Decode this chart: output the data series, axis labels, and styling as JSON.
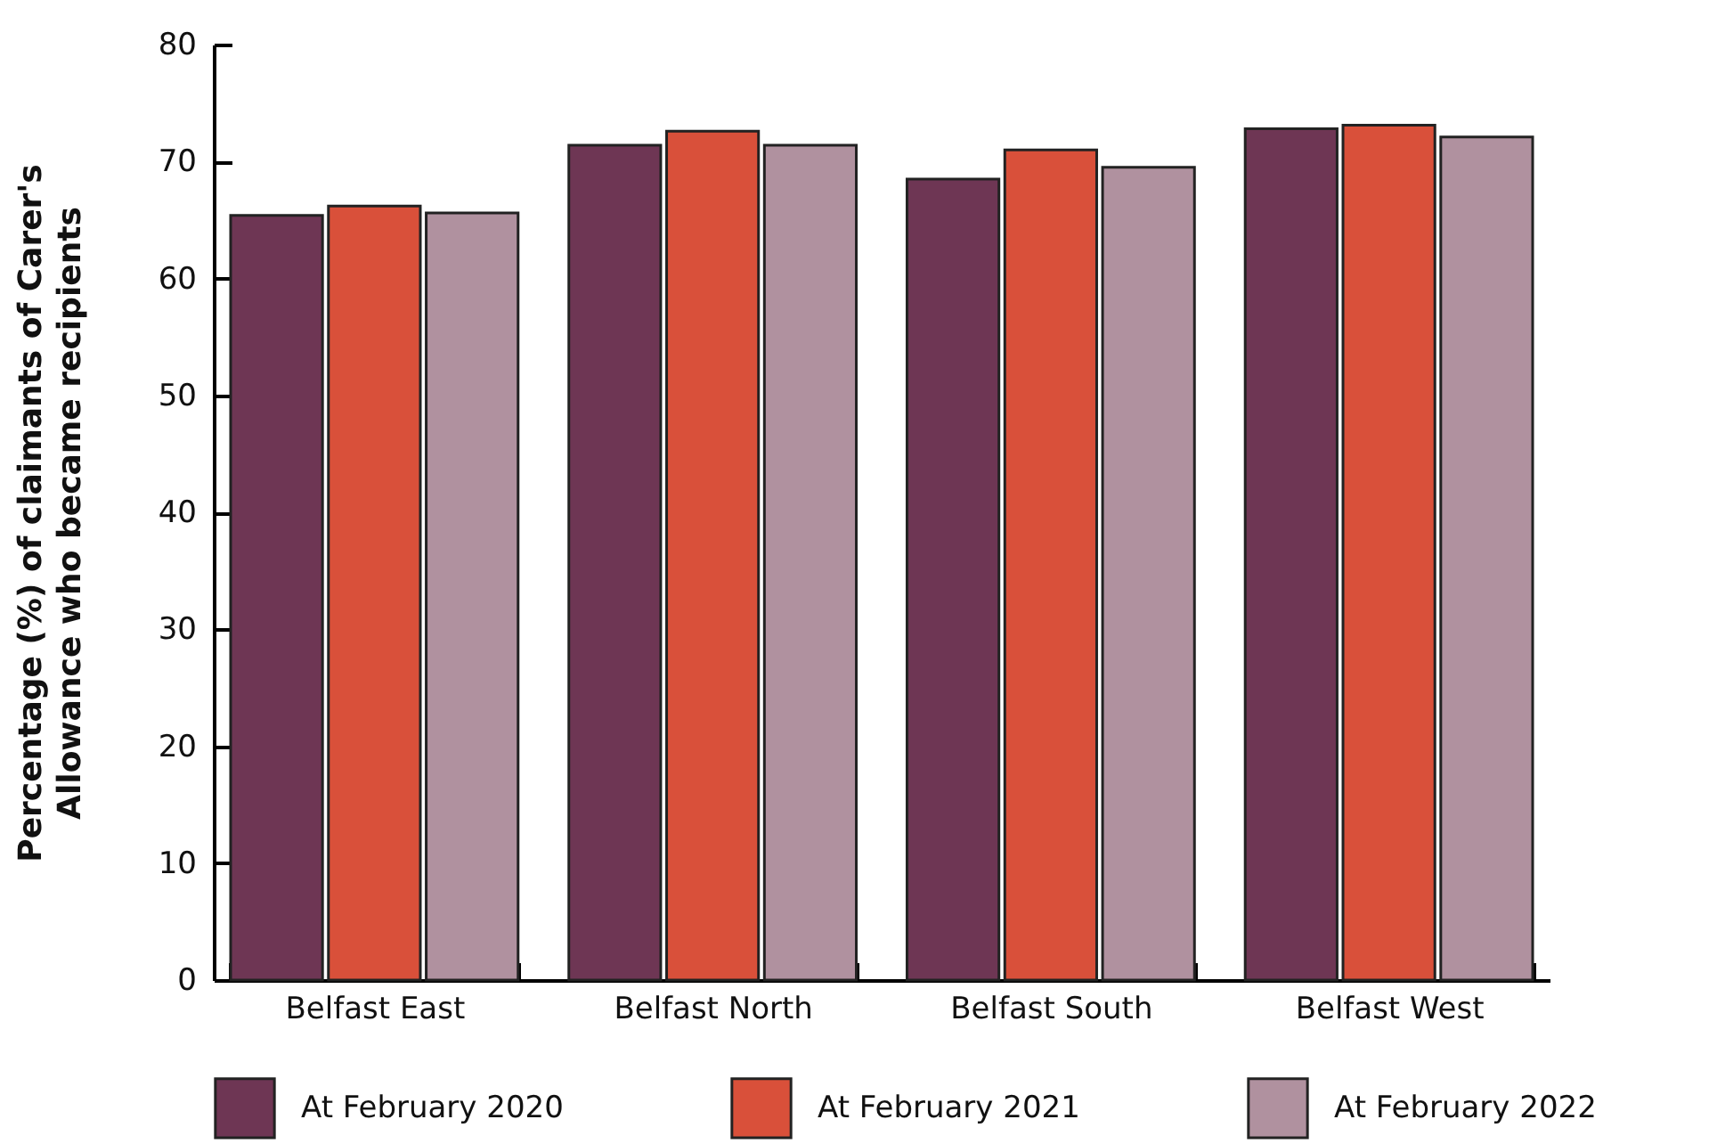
{
  "chart_data": {
    "type": "bar",
    "ylabel": "Percentage (%) of claimants of Carer's Allowance who became recipients",
    "categories": [
      "Belfast East",
      "Belfast North",
      "Belfast South",
      "Belfast West"
    ],
    "series": [
      {
        "name": "At February 2020",
        "color": "#6e3654",
        "values": [
          65.4,
          71.4,
          68.5,
          72.8
        ]
      },
      {
        "name": "At February 2021",
        "color": "#d9503a",
        "values": [
          66.2,
          72.6,
          71.0,
          73.1
        ]
      },
      {
        "name": "At February 2022",
        "color": "#b0919f",
        "values": [
          65.6,
          71.4,
          69.5,
          72.1
        ]
      }
    ],
    "ylim": [
      0,
      80
    ],
    "yticks": [
      0,
      10,
      20,
      30,
      40,
      50,
      60,
      70,
      80
    ],
    "grid": false,
    "legend": "bottom"
  }
}
